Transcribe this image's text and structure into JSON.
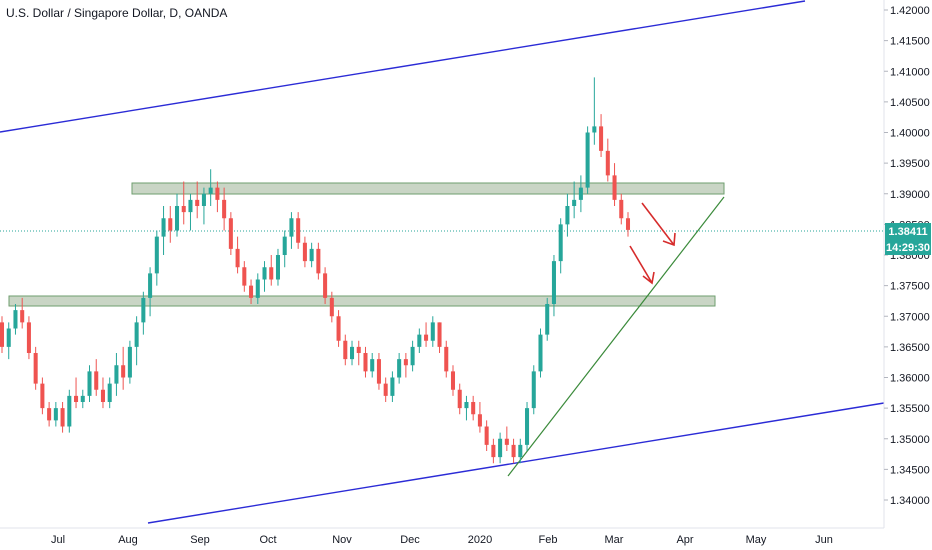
{
  "chart_data": {
    "type": "candlestick",
    "title": "U.S. Dollar / Singapore Dollar, D, OANDA",
    "xlabel": "",
    "ylabel": "",
    "ylim": [
      1.3355,
      1.4225
    ],
    "y_ticks": [
      "1.34000",
      "1.34500",
      "1.35000",
      "1.35500",
      "1.36000",
      "1.36500",
      "1.37000",
      "1.37500",
      "1.38000",
      "1.38500",
      "1.39000",
      "1.39500",
      "1.40000",
      "1.40500",
      "1.41000",
      "1.41500",
      "1.42000"
    ],
    "x_ticks": [
      "Jul",
      "Aug",
      "Sep",
      "Oct",
      "Nov",
      "Dec",
      "2020",
      "Feb",
      "Mar",
      "Apr",
      "May",
      "Jun"
    ],
    "last_price_label": "1.38411",
    "countdown_label": "14:29:30",
    "colors": {
      "up": "#26a69a",
      "down": "#ef5350",
      "channel": "#2b2bd6",
      "trendline": "#3a8a3a",
      "zone_fill": "#b7c7b2",
      "zone_stroke": "#6e9e6e",
      "arrow": "#d62c2c",
      "price_line": "#26a69a",
      "price_tag_bg": "#26a69a"
    },
    "candles": [
      [
        1.369,
        1.37,
        1.364,
        1.365
      ],
      [
        1.365,
        1.369,
        1.363,
        1.368
      ],
      [
        1.368,
        1.372,
        1.367,
        1.371
      ],
      [
        1.371,
        1.373,
        1.368,
        1.369
      ],
      [
        1.369,
        1.37,
        1.363,
        1.364
      ],
      [
        1.364,
        1.365,
        1.358,
        1.359
      ],
      [
        1.359,
        1.36,
        1.354,
        1.355
      ],
      [
        1.355,
        1.356,
        1.352,
        1.353
      ],
      [
        1.353,
        1.356,
        1.352,
        1.355
      ],
      [
        1.355,
        1.356,
        1.351,
        1.352
      ],
      [
        1.352,
        1.358,
        1.351,
        1.357
      ],
      [
        1.357,
        1.36,
        1.355,
        1.356
      ],
      [
        1.356,
        1.358,
        1.355,
        1.357
      ],
      [
        1.357,
        1.362,
        1.356,
        1.361
      ],
      [
        1.361,
        1.363,
        1.357,
        1.358
      ],
      [
        1.358,
        1.36,
        1.355,
        1.356
      ],
      [
        1.356,
        1.36,
        1.355,
        1.359
      ],
      [
        1.359,
        1.364,
        1.357,
        1.362
      ],
      [
        1.362,
        1.365,
        1.358,
        1.36
      ],
      [
        1.36,
        1.366,
        1.359,
        1.365
      ],
      [
        1.365,
        1.37,
        1.362,
        1.369
      ],
      [
        1.369,
        1.374,
        1.367,
        1.373
      ],
      [
        1.373,
        1.378,
        1.37,
        1.377
      ],
      [
        1.377,
        1.384,
        1.375,
        1.383
      ],
      [
        1.383,
        1.388,
        1.38,
        1.386
      ],
      [
        1.386,
        1.388,
        1.382,
        1.384
      ],
      [
        1.384,
        1.39,
        1.383,
        1.388
      ],
      [
        1.388,
        1.392,
        1.385,
        1.387
      ],
      [
        1.387,
        1.39,
        1.384,
        1.389
      ],
      [
        1.389,
        1.392,
        1.386,
        1.388
      ],
      [
        1.388,
        1.391,
        1.385,
        1.39
      ],
      [
        1.39,
        1.394,
        1.388,
        1.391
      ],
      [
        1.391,
        1.392,
        1.387,
        1.389
      ],
      [
        1.389,
        1.391,
        1.384,
        1.386
      ],
      [
        1.386,
        1.387,
        1.38,
        1.381
      ],
      [
        1.381,
        1.383,
        1.377,
        1.378
      ],
      [
        1.378,
        1.379,
        1.374,
        1.375
      ],
      [
        1.375,
        1.376,
        1.372,
        1.373
      ],
      [
        1.373,
        1.377,
        1.372,
        1.376
      ],
      [
        1.376,
        1.379,
        1.374,
        1.378
      ],
      [
        1.378,
        1.38,
        1.375,
        1.376
      ],
      [
        1.376,
        1.381,
        1.375,
        1.38
      ],
      [
        1.38,
        1.384,
        1.378,
        1.383
      ],
      [
        1.383,
        1.387,
        1.381,
        1.386
      ],
      [
        1.386,
        1.387,
        1.381,
        1.382
      ],
      [
        1.382,
        1.383,
        1.378,
        1.379
      ],
      [
        1.379,
        1.382,
        1.378,
        1.381
      ],
      [
        1.381,
        1.382,
        1.376,
        1.377
      ],
      [
        1.377,
        1.378,
        1.372,
        1.373
      ],
      [
        1.373,
        1.374,
        1.369,
        1.37
      ],
      [
        1.37,
        1.371,
        1.365,
        1.366
      ],
      [
        1.366,
        1.367,
        1.362,
        1.363
      ],
      [
        1.363,
        1.366,
        1.362,
        1.365
      ],
      [
        1.365,
        1.366,
        1.362,
        1.364
      ],
      [
        1.364,
        1.365,
        1.36,
        1.361
      ],
      [
        1.361,
        1.364,
        1.36,
        1.363
      ],
      [
        1.363,
        1.364,
        1.358,
        1.359
      ],
      [
        1.359,
        1.36,
        1.356,
        1.357
      ],
      [
        1.357,
        1.361,
        1.356,
        1.36
      ],
      [
        1.36,
        1.364,
        1.359,
        1.363
      ],
      [
        1.363,
        1.364,
        1.36,
        1.362
      ],
      [
        1.362,
        1.366,
        1.361,
        1.365
      ],
      [
        1.365,
        1.368,
        1.364,
        1.367
      ],
      [
        1.367,
        1.369,
        1.365,
        1.366
      ],
      [
        1.366,
        1.37,
        1.365,
        1.369
      ],
      [
        1.369,
        1.369,
        1.364,
        1.365
      ],
      [
        1.365,
        1.366,
        1.36,
        1.361
      ],
      [
        1.361,
        1.362,
        1.357,
        1.358
      ],
      [
        1.358,
        1.359,
        1.354,
        1.355
      ],
      [
        1.355,
        1.357,
        1.353,
        1.356
      ],
      [
        1.356,
        1.357,
        1.353,
        1.354
      ],
      [
        1.354,
        1.356,
        1.351,
        1.352
      ],
      [
        1.352,
        1.353,
        1.348,
        1.349
      ],
      [
        1.349,
        1.35,
        1.346,
        1.347
      ],
      [
        1.347,
        1.351,
        1.346,
        1.35
      ],
      [
        1.35,
        1.352,
        1.348,
        1.349
      ],
      [
        1.349,
        1.35,
        1.346,
        1.347
      ],
      [
        1.347,
        1.35,
        1.346,
        1.349
      ],
      [
        1.349,
        1.356,
        1.348,
        1.355
      ],
      [
        1.355,
        1.362,
        1.354,
        1.361
      ],
      [
        1.361,
        1.368,
        1.36,
        1.367
      ],
      [
        1.367,
        1.373,
        1.366,
        1.372
      ],
      [
        1.372,
        1.38,
        1.37,
        1.379
      ],
      [
        1.379,
        1.386,
        1.377,
        1.385
      ],
      [
        1.385,
        1.39,
        1.383,
        1.388
      ],
      [
        1.388,
        1.392,
        1.386,
        1.389
      ],
      [
        1.389,
        1.393,
        1.387,
        1.391
      ],
      [
        1.391,
        1.401,
        1.39,
        1.4
      ],
      [
        1.4,
        1.409,
        1.398,
        1.401
      ],
      [
        1.401,
        1.403,
        1.396,
        1.397
      ],
      [
        1.397,
        1.399,
        1.392,
        1.393
      ],
      [
        1.393,
        1.395,
        1.388,
        1.389
      ],
      [
        1.389,
        1.39,
        1.385,
        1.386
      ],
      [
        1.386,
        1.387,
        1.383,
        1.3841
      ]
    ]
  }
}
